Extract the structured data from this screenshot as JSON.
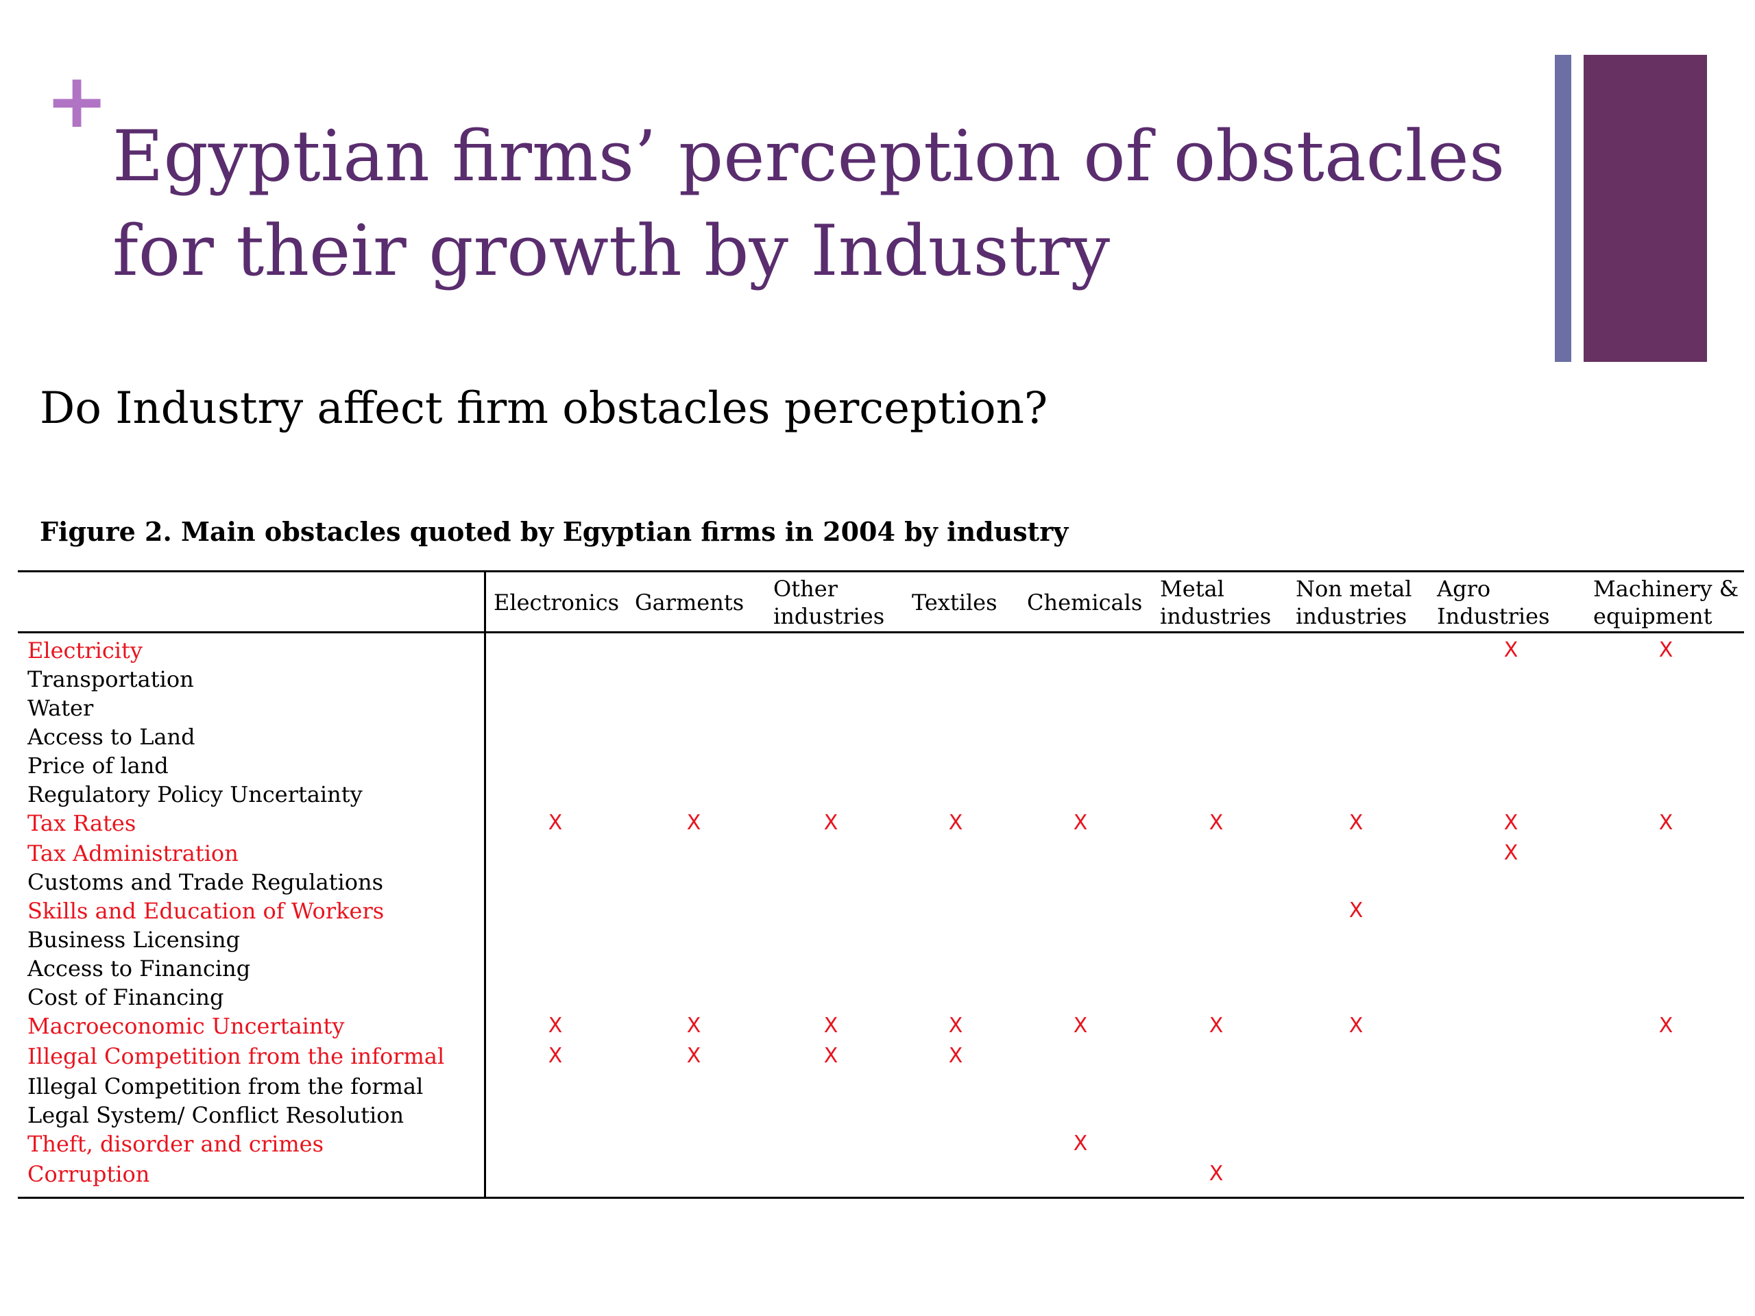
{
  "slide": {
    "plus_symbol": "+",
    "title": "Egyptian firms’ perception of obstacles for their growth by Industry",
    "question": "Do Industry affect firm obstacles perception?",
    "figure_caption": "Figure 2. Main obstacles quoted by Egyptian firms in 2004 by industry",
    "accent_colors": {
      "plus": "#b174c5",
      "title": "#5a2d6e",
      "bar_thin": "#6b6fa3",
      "bar_thick": "#673262",
      "highlight": "#e8141e"
    }
  },
  "table": {
    "mark_symbol": "X",
    "columns": [
      {
        "line1": "Electronics",
        "line2": ""
      },
      {
        "line1": "Garments",
        "line2": ""
      },
      {
        "line1": "Other",
        "line2": "industries"
      },
      {
        "line1": "Textiles",
        "line2": ""
      },
      {
        "line1": "Chemicals",
        "line2": ""
      },
      {
        "line1": "Metal",
        "line2": "industries"
      },
      {
        "line1": "Non metal",
        "line2": "industries"
      },
      {
        "line1": "Agro",
        "line2": "Industries"
      },
      {
        "line1": "Machinery &",
        "line2": "equipment"
      }
    ],
    "rows": [
      {
        "label": "Electricity",
        "highlight": true,
        "marks": [
          0,
          0,
          0,
          0,
          0,
          0,
          0,
          1,
          1
        ]
      },
      {
        "label": "Transportation",
        "highlight": false,
        "marks": [
          0,
          0,
          0,
          0,
          0,
          0,
          0,
          0,
          0
        ]
      },
      {
        "label": "Water",
        "highlight": false,
        "marks": [
          0,
          0,
          0,
          0,
          0,
          0,
          0,
          0,
          0
        ]
      },
      {
        "label": "Access to Land",
        "highlight": false,
        "marks": [
          0,
          0,
          0,
          0,
          0,
          0,
          0,
          0,
          0
        ]
      },
      {
        "label": "Price of land",
        "highlight": false,
        "marks": [
          0,
          0,
          0,
          0,
          0,
          0,
          0,
          0,
          0
        ]
      },
      {
        "label": "Regulatory Policy Uncertainty",
        "highlight": false,
        "marks": [
          0,
          0,
          0,
          0,
          0,
          0,
          0,
          0,
          0
        ]
      },
      {
        "label": "Tax Rates",
        "highlight": true,
        "marks": [
          1,
          1,
          1,
          1,
          1,
          1,
          1,
          1,
          1
        ]
      },
      {
        "label": "Tax Administration",
        "highlight": true,
        "marks": [
          0,
          0,
          0,
          0,
          0,
          0,
          0,
          1,
          0
        ]
      },
      {
        "label": "Customs and Trade Regulations",
        "highlight": false,
        "marks": [
          0,
          0,
          0,
          0,
          0,
          0,
          0,
          0,
          0
        ]
      },
      {
        "label": "Skills and Education of Workers",
        "highlight": true,
        "marks": [
          0,
          0,
          0,
          0,
          0,
          0,
          1,
          0,
          0
        ]
      },
      {
        "label": "Business Licensing",
        "highlight": false,
        "marks": [
          0,
          0,
          0,
          0,
          0,
          0,
          0,
          0,
          0
        ]
      },
      {
        "label": "Access to Financing",
        "highlight": false,
        "marks": [
          0,
          0,
          0,
          0,
          0,
          0,
          0,
          0,
          0
        ]
      },
      {
        "label": "Cost of Financing",
        "highlight": false,
        "marks": [
          0,
          0,
          0,
          0,
          0,
          0,
          0,
          0,
          0
        ]
      },
      {
        "label": "Macroeconomic Uncertainty",
        "highlight": true,
        "marks": [
          1,
          1,
          1,
          1,
          1,
          1,
          1,
          0,
          1
        ]
      },
      {
        "label": "Illegal Competition from the informal",
        "highlight": true,
        "marks": [
          1,
          1,
          1,
          1,
          0,
          0,
          0,
          0,
          0
        ]
      },
      {
        "label": "Illegal Competition from the formal",
        "highlight": false,
        "marks": [
          0,
          0,
          0,
          0,
          0,
          0,
          0,
          0,
          0
        ]
      },
      {
        "label": "Legal System/ Conflict Resolution",
        "highlight": false,
        "marks": [
          0,
          0,
          0,
          0,
          0,
          0,
          0,
          0,
          0
        ]
      },
      {
        "label": "Theft, disorder and crimes",
        "highlight": true,
        "marks": [
          0,
          0,
          0,
          0,
          1,
          0,
          0,
          0,
          0
        ]
      },
      {
        "label": "Corruption",
        "highlight": true,
        "marks": [
          0,
          0,
          0,
          0,
          0,
          1,
          0,
          0,
          0
        ]
      }
    ]
  }
}
